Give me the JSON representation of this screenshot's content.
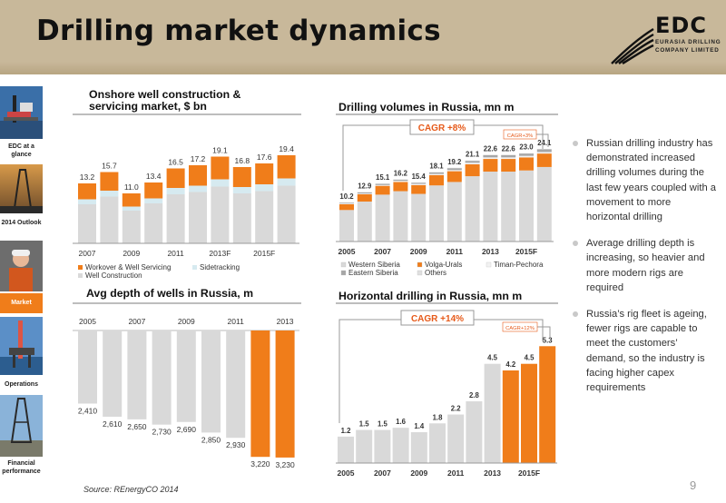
{
  "page": {
    "title": "Drilling market dynamics",
    "source": "Source: REnergyCO 2014",
    "page_number": "9"
  },
  "logo": {
    "name": "EDC",
    "subtitle": "EURASIA DRILLING COMPANY LIMITED"
  },
  "sidebar": {
    "items": [
      {
        "label": "EDC at a glance",
        "icon": "offshore-rig-photo"
      },
      {
        "label": "2014 Outlook",
        "icon": "rig-silhouette-photo"
      },
      {
        "label": "Market",
        "icon": "worker-photo",
        "active": true
      },
      {
        "label": "Operations",
        "icon": "platform-photo"
      },
      {
        "label": "Financial performance",
        "icon": "drilling-rig-photo"
      }
    ]
  },
  "colors": {
    "orange": "#f07d1a",
    "light_grey": "#d9d9d9",
    "mid_grey": "#a6a6a6",
    "cyan_light": "#d6eaf0",
    "header": "#c8b89a"
  },
  "bullets": [
    "Russian drilling industry has demonstrated increased drilling volumes during the last few years coupled with a movement to more horizontal drilling",
    "Average drilling depth is increasing, so heavier and more modern rigs are required",
    "Russia’s rig fleet is ageing, fewer rigs are capable to meet the customers’ demand, so the industry is facing higher capex requirements"
  ],
  "chart_data": [
    {
      "id": "onshore",
      "type": "bar",
      "title": "Onshore well construction & servicing market, $ bn",
      "stacked": true,
      "categories": [
        "2007",
        "2008",
        "2009",
        "2010",
        "2011",
        "2012",
        "2013F",
        "2014F",
        "2015F",
        "2016F"
      ],
      "tick_labels": [
        "2007",
        "2009",
        "2011",
        "2013F",
        "2015F"
      ],
      "totals": [
        "13.2",
        "15.7",
        "11.0",
        "13.4",
        "16.5",
        "17.2",
        "19.1",
        "16.8",
        "17.6",
        "19.4"
      ],
      "series": [
        {
          "name": "Well Construction",
          "values": [
            8.6,
            10.3,
            7.2,
            8.8,
            10.8,
            11.3,
            12.5,
            11.0,
            11.5,
            12.7
          ]
        },
        {
          "name": "Sidetracking",
          "values": [
            1.1,
            1.3,
            0.9,
            1.1,
            1.4,
            1.4,
            1.6,
            1.4,
            1.5,
            1.6
          ]
        },
        {
          "name": "Workover & Well Servicing",
          "values": [
            3.5,
            4.1,
            2.9,
            3.5,
            4.3,
            4.5,
            5.0,
            4.4,
            4.6,
            5.1
          ]
        }
      ],
      "legend": [
        "Workover & Well Servicing",
        "Sidetracking",
        "Well Construction"
      ],
      "ylim": [
        0,
        20
      ]
    },
    {
      "id": "volumes",
      "type": "bar",
      "title": "Drilling volumes in Russia, mn m",
      "stacked": true,
      "categories": [
        "2005",
        "2006",
        "2007",
        "2008",
        "2009",
        "2010",
        "2011",
        "2012",
        "2013",
        "2014F",
        "2015F",
        "2016F"
      ],
      "tick_labels": [
        "2005",
        "2007",
        "2009",
        "2011",
        "2013",
        "2015F"
      ],
      "totals": [
        "10.2",
        "12.9",
        "15.1",
        "16.2",
        "15.4",
        "18.1",
        "19.2",
        "21.1",
        "22.6",
        "22.6",
        "23.0",
        "24.1"
      ],
      "series": [
        {
          "name": "Western Siberia",
          "values": [
            8.2,
            10.4,
            12.2,
            13.1,
            12.4,
            14.6,
            15.5,
            17.0,
            18.2,
            18.2,
            18.5,
            19.4
          ]
        },
        {
          "name": "Volga-Urals",
          "values": [
            1.5,
            1.9,
            2.3,
            2.4,
            2.3,
            2.7,
            2.8,
            3.1,
            3.3,
            3.3,
            3.4,
            3.5
          ]
        },
        {
          "name": "Timan-Pechora",
          "values": [
            0.2,
            0.2,
            0.2,
            0.3,
            0.3,
            0.3,
            0.3,
            0.4,
            0.4,
            0.4,
            0.4,
            0.4
          ]
        },
        {
          "name": "Eastern Siberia",
          "values": [
            0.2,
            0.3,
            0.3,
            0.3,
            0.3,
            0.4,
            0.5,
            0.5,
            0.6,
            0.6,
            0.6,
            0.7
          ]
        },
        {
          "name": "Others",
          "values": [
            0.1,
            0.1,
            0.1,
            0.1,
            0.1,
            0.1,
            0.1,
            0.1,
            0.1,
            0.1,
            0.1,
            0.1
          ]
        }
      ],
      "legend": [
        "Western Siberia",
        "Volga-Urals",
        "Timan-Pechora",
        "Eastern Siberia",
        "Others"
      ],
      "annotations": [
        "CAGR +8%",
        "CAGR+3%"
      ],
      "ylim": [
        0,
        26
      ]
    },
    {
      "id": "depth",
      "type": "bar",
      "title": "Avg depth of wells in Russia, m",
      "inverted": true,
      "categories": [
        "2005",
        "2006",
        "2007",
        "2008",
        "2009",
        "2010",
        "2011",
        "2012",
        "2013"
      ],
      "tick_labels": [
        "2005",
        "2007",
        "2009",
        "2011",
        "2013"
      ],
      "values": [
        2410,
        2610,
        2650,
        2730,
        2690,
        2850,
        2930,
        3220,
        3230
      ],
      "value_labels": [
        "2,410",
        "2,610",
        "2,650",
        "2,730",
        "2,690",
        "2,850",
        "2,930",
        "3,220",
        "3,230"
      ],
      "highlight_from_index": 7,
      "ylim": [
        0,
        3300
      ]
    },
    {
      "id": "horizontal",
      "type": "bar",
      "title": "Horizontal drilling in Russia, mn m",
      "categories": [
        "2005",
        "2006",
        "2007",
        "2008",
        "2009",
        "2010",
        "2011",
        "2012",
        "2013",
        "2014F",
        "2015F",
        "2016F"
      ],
      "tick_labels": [
        "2005",
        "2007",
        "2009",
        "2011",
        "2013",
        "2015F"
      ],
      "values": [
        1.2,
        1.5,
        1.5,
        1.6,
        1.4,
        1.8,
        2.2,
        2.8,
        4.5,
        4.2,
        4.5,
        5.3
      ],
      "value_labels": [
        "1.2",
        "1.5",
        "1.5",
        "1.6",
        "1.4",
        "1.8",
        "2.2",
        "2.8",
        "4.5",
        "4.2",
        "4.5",
        "5.3"
      ],
      "highlight_from_index": 9,
      "annotations": [
        "CAGR +14%",
        "CAGR+12%"
      ],
      "ylim": [
        0,
        5.6
      ]
    }
  ]
}
